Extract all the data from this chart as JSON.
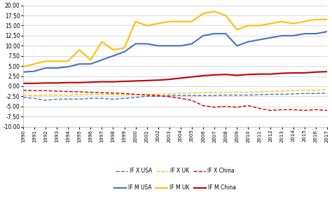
{
  "years": [
    1990,
    1991,
    1992,
    1993,
    1994,
    1995,
    1996,
    1997,
    1998,
    1999,
    2000,
    2001,
    2002,
    2003,
    2004,
    2005,
    2006,
    2007,
    2008,
    2009,
    2010,
    2011,
    2012,
    2013,
    2014,
    2015,
    2016,
    2017
  ],
  "IF_X_USA": [
    -2.8,
    -3.0,
    -3.5,
    -3.2,
    -3.2,
    -3.2,
    -3.0,
    -3.0,
    -3.2,
    -3.0,
    -2.8,
    -2.5,
    -2.5,
    -2.3,
    -2.3,
    -2.3,
    -2.3,
    -2.3,
    -2.2,
    -2.2,
    -2.2,
    -2.1,
    -2.0,
    -2.0,
    -1.9,
    -1.8,
    -1.8,
    -1.7
  ],
  "IF_X_UK": [
    -2.2,
    -2.3,
    -2.2,
    -2.2,
    -2.2,
    -2.1,
    -2.1,
    -2.0,
    -2.0,
    -2.1,
    -2.1,
    -2.0,
    -2.0,
    -1.9,
    -1.8,
    -1.7,
    -1.6,
    -1.6,
    -1.5,
    -1.5,
    -1.5,
    -1.4,
    -1.3,
    -1.2,
    -1.1,
    -1.0,
    -1.0,
    -0.8
  ],
  "IF_X_China": [
    -1.0,
    -1.1,
    -1.1,
    -1.2,
    -1.3,
    -1.4,
    -1.5,
    -1.6,
    -1.7,
    -1.8,
    -2.0,
    -2.2,
    -2.3,
    -2.6,
    -3.0,
    -3.5,
    -4.8,
    -5.2,
    -5.0,
    -5.2,
    -4.8,
    -5.5,
    -6.0,
    -5.8,
    -5.8,
    -6.0,
    -5.8,
    -6.0
  ],
  "IF_M_USA": [
    3.5,
    3.7,
    4.5,
    4.5,
    4.8,
    5.5,
    5.5,
    6.5,
    7.5,
    8.5,
    10.5,
    10.5,
    10.0,
    10.0,
    10.0,
    10.5,
    12.5,
    13.0,
    13.0,
    10.0,
    11.0,
    11.5,
    12.0,
    12.5,
    12.5,
    13.0,
    13.0,
    13.5
  ],
  "IF_M_UK": [
    4.8,
    5.5,
    6.2,
    6.2,
    6.2,
    9.0,
    6.5,
    11.0,
    9.0,
    9.5,
    16.0,
    15.0,
    15.5,
    16.0,
    16.0,
    16.0,
    18.0,
    18.5,
    17.5,
    14.0,
    15.0,
    15.0,
    15.5,
    16.0,
    15.5,
    16.0,
    16.5,
    16.5
  ],
  "IF_M_China": [
    0.7,
    0.7,
    0.8,
    0.8,
    0.9,
    0.9,
    1.0,
    1.1,
    1.1,
    1.2,
    1.3,
    1.4,
    1.5,
    1.7,
    2.0,
    2.3,
    2.6,
    2.8,
    2.9,
    2.7,
    2.9,
    3.0,
    3.0,
    3.2,
    3.3,
    3.3,
    3.5,
    3.6
  ],
  "ylim": [
    -10.0,
    20.0
  ],
  "yticks": [
    -10.0,
    -7.5,
    -5.0,
    -2.5,
    0.0,
    2.5,
    5.0,
    7.5,
    10.0,
    12.5,
    15.0,
    17.5,
    20.0
  ],
  "bg_color": "#ffffff",
  "grid_color": "#d9d9d9",
  "color_blue": "#4472c4",
  "color_yellow": "#ffc000",
  "color_red": "#c00000",
  "legend_labels_dashed": [
    "IF X USA",
    "IF X UK",
    "IF X China"
  ],
  "legend_labels_solid": [
    "IF M USA",
    "IF M UK",
    "IF M China"
  ]
}
